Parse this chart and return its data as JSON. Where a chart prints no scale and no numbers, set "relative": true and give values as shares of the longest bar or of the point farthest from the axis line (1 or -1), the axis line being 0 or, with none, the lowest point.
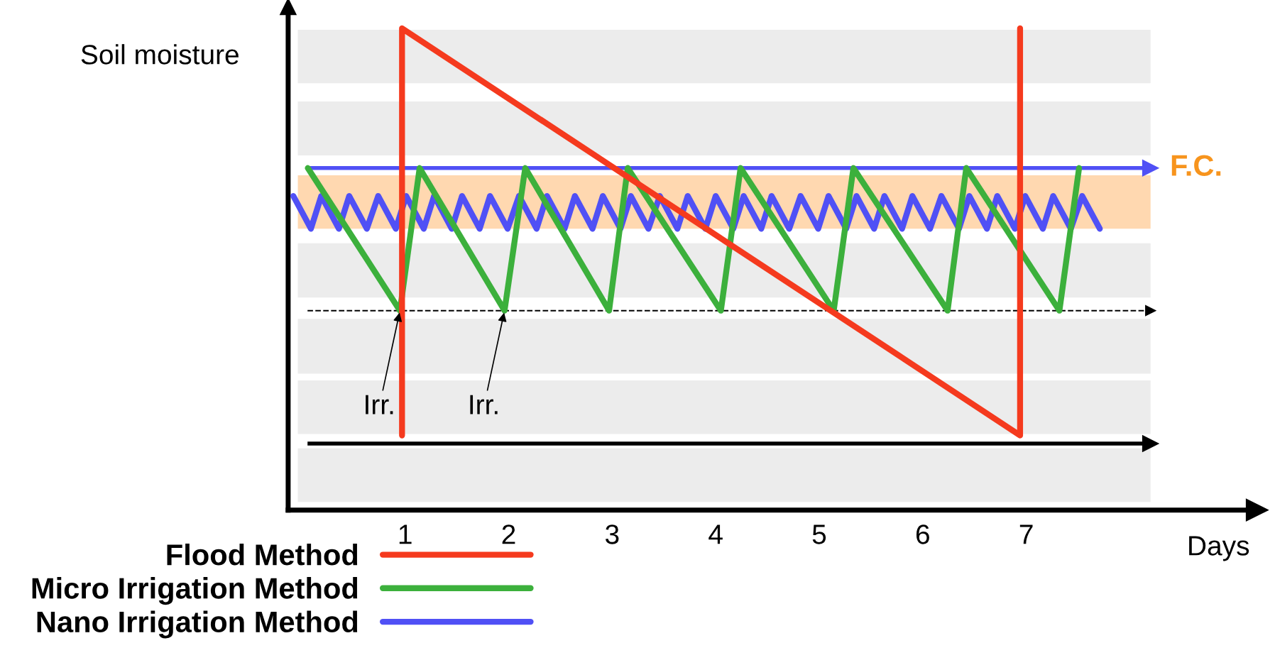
{
  "chart_data": {
    "type": "line",
    "relative": true,
    "xlabel": "Days",
    "ylabel": "Soil moisture",
    "xlim": [
      -0.13,
      9.23
    ],
    "xticks": [
      1,
      2,
      3,
      4,
      5,
      6,
      7
    ],
    "series": [
      {
        "name": "Flood Method",
        "color": "#f53a1e",
        "x": [
          0.97,
          0.97,
          6.94,
          6.94
        ],
        "values": [
          0.155,
          1,
          0.155,
          1
        ]
      },
      {
        "name": "Micro Irrigation Method",
        "color": "#3cb03c",
        "x": [
          0.06,
          0.95,
          1.14,
          1.96,
          2.16,
          2.97,
          3.15,
          4.05,
          4.24,
          5.14,
          5.33,
          6.24,
          6.42,
          7.32,
          7.51
        ],
        "values": [
          0.71,
          0.414,
          0.71,
          0.414,
          0.71,
          0.414,
          0.71,
          0.414,
          0.71,
          0.414,
          0.71,
          0.414,
          0.71,
          0.414,
          0.71
        ]
      },
      {
        "name": "Nano Irrigation Method",
        "color": "#5050f5",
        "x": [
          -0.08,
          0.09,
          0.19,
          0.36,
          0.46,
          0.63,
          0.74,
          0.91,
          1.01,
          1.18,
          1.28,
          1.45,
          1.55,
          1.72,
          1.82,
          1.99,
          2.1,
          2.27,
          2.37,
          2.54,
          2.64,
          2.81,
          2.91,
          3.08,
          3.18,
          3.35,
          3.46,
          3.63,
          3.73,
          3.9,
          4.0,
          4.17,
          4.27,
          4.44,
          4.54,
          4.71,
          4.82,
          4.99,
          5.09,
          5.26,
          5.36,
          5.53,
          5.63,
          5.8,
          5.9,
          6.07,
          6.18,
          6.35,
          6.45,
          6.62,
          6.72,
          6.89,
          6.99,
          7.16,
          7.26,
          7.43,
          7.54,
          7.71
        ],
        "values": [
          0.652,
          0.584,
          0.652,
          0.584,
          0.652,
          0.584,
          0.652,
          0.584,
          0.652,
          0.584,
          0.652,
          0.584,
          0.652,
          0.584,
          0.652,
          0.584,
          0.652,
          0.584,
          0.652,
          0.584,
          0.652,
          0.584,
          0.652,
          0.584,
          0.652,
          0.584,
          0.652,
          0.584,
          0.652,
          0.584,
          0.652,
          0.584,
          0.652,
          0.584,
          0.652,
          0.584,
          0.652,
          0.584,
          0.652,
          0.584,
          0.652,
          0.584,
          0.652,
          0.584,
          0.652,
          0.584,
          0.652,
          0.584,
          0.652,
          0.584,
          0.652,
          0.584,
          0.652,
          0.584,
          0.652,
          0.584,
          0.652,
          0.584
        ]
      }
    ],
    "ref_lines": [
      {
        "axis": "y",
        "value": 0.71,
        "label": "F.C.",
        "color": "#5050f5"
      },
      {
        "axis": "y",
        "value": 0.414,
        "color": "#000000",
        "line_style": "dashed"
      },
      {
        "axis": "y",
        "value": 0.138,
        "color": "#000000"
      }
    ],
    "bands": [
      {
        "axis": "y",
        "from": 0.886,
        "to": 0.997,
        "color": "#ececec"
      },
      {
        "axis": "y",
        "from": 0.736,
        "to": 0.848,
        "color": "#ececec"
      },
      {
        "axis": "y",
        "from": 0.584,
        "to": 0.695,
        "color": "#ffd8b0"
      },
      {
        "axis": "y",
        "from": 0.441,
        "to": 0.554,
        "color": "#ececec"
      },
      {
        "axis": "y",
        "from": 0.283,
        "to": 0.397,
        "color": "#ececec"
      },
      {
        "axis": "y",
        "from": 0.158,
        "to": 0.269,
        "color": "#ececec"
      },
      {
        "axis": "y",
        "from": 0.017,
        "to": 0.128,
        "color": "#ececec"
      }
    ],
    "annotations": [
      {
        "text": "Irr.",
        "x": 0.95,
        "y": 0.414
      },
      {
        "text": "Irr.",
        "x": 1.96,
        "y": 0.414
      }
    ],
    "legend": "bottom left",
    "grid": false,
    "marker": "none",
    "line_style": "solid"
  }
}
